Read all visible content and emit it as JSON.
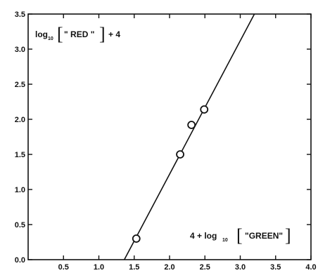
{
  "chart_data": {
    "type": "scatter",
    "xlim": [
      0.0,
      4.0
    ],
    "ylim": [
      0.0,
      3.5
    ],
    "x_ticks": [
      "0.5",
      "1.0",
      "1.5",
      "2.0",
      "2.5",
      "3.0",
      "3.5",
      "4.0"
    ],
    "y_ticks": [
      "0.0",
      "0.5",
      "1.0",
      "1.5",
      "2.0",
      "2.5",
      "3.0",
      "3.5"
    ],
    "x_tick_values": [
      0.5,
      1.0,
      1.5,
      2.0,
      2.5,
      3.0,
      3.5,
      4.0
    ],
    "y_tick_values": [
      0.0,
      0.5,
      1.0,
      1.5,
      2.0,
      2.5,
      3.0,
      3.5
    ],
    "ylabel": {
      "prefix": "log",
      "subscript": "10",
      "bracket_open": "[",
      "quantity": "\" RED \"",
      "bracket_close": "]",
      "suffix": "+ 4"
    },
    "xlabel": {
      "prefix": "4 + log",
      "subscript": "10",
      "bracket_open": "[",
      "quantity": "\"GREEN\"",
      "bracket_close": "]"
    },
    "points": [
      {
        "x": 1.53,
        "y": 0.3
      },
      {
        "x": 2.15,
        "y": 1.5
      },
      {
        "x": 2.31,
        "y": 1.92
      },
      {
        "x": 2.49,
        "y": 2.14
      }
    ],
    "fit_line": {
      "x1": 1.36,
      "y1": 0.0,
      "x2": 3.2,
      "y2": 3.5
    },
    "grid": false,
    "legend": "none"
  }
}
